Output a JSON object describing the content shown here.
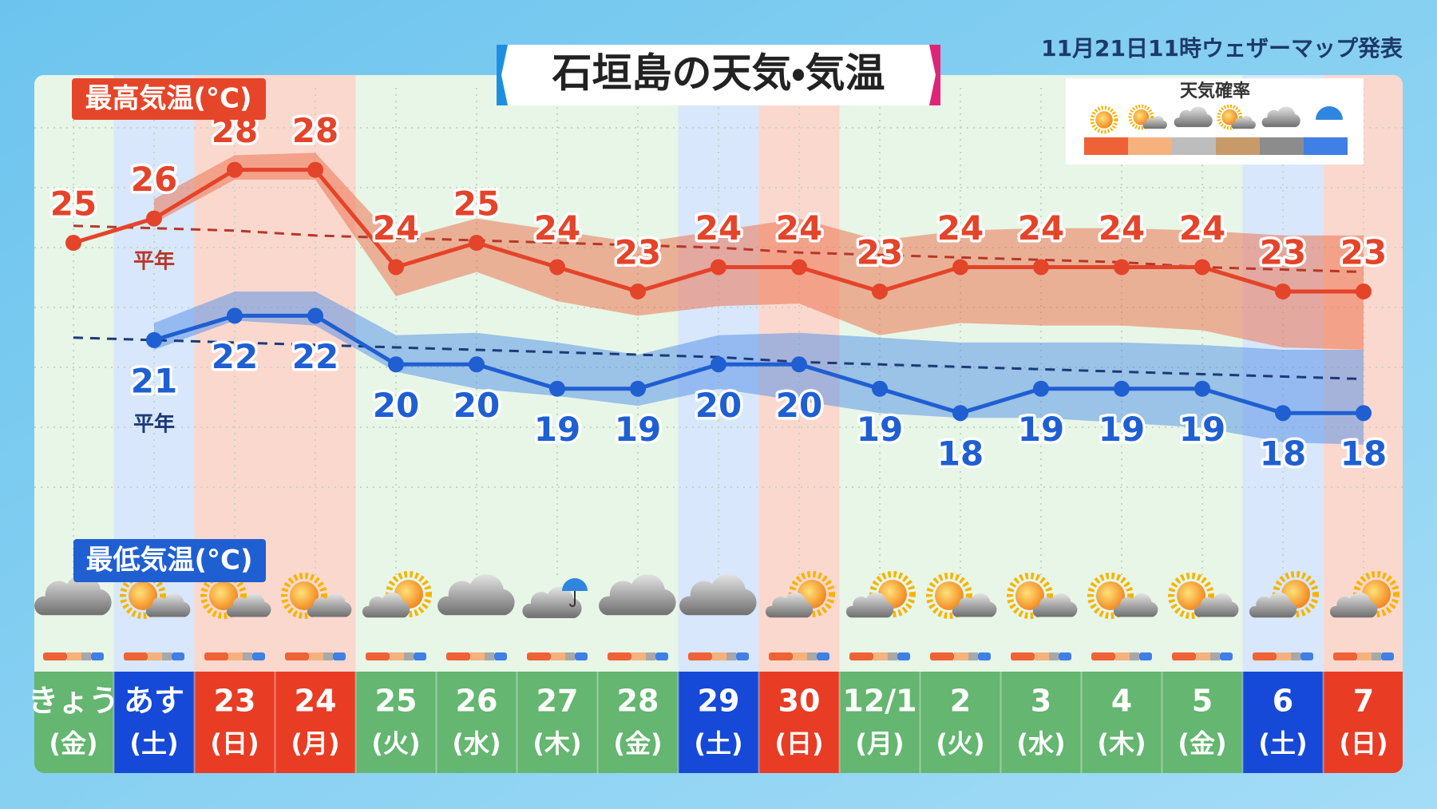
{
  "header": {
    "title": "石垣島の天気・気温",
    "issued": "11月21日11時ウェザーマップ発表"
  },
  "legend": {
    "title": "天気確率"
  },
  "chart_data": {
    "type": "line",
    "categories": [
      "きょう",
      "あす",
      "23",
      "24",
      "25",
      "26",
      "27",
      "28",
      "29",
      "30",
      "12/1",
      "2",
      "3",
      "4",
      "5",
      "6",
      "7"
    ],
    "weekdays": [
      "(金)",
      "(土)",
      "(日)",
      "(月)",
      "(火)",
      "(水)",
      "(木)",
      "(金)",
      "(土)",
      "(日)",
      "(月)",
      "(火)",
      "(水)",
      "(木)",
      "(金)",
      "(土)",
      "(日)"
    ],
    "ylim": [
      7.4,
      31.7
    ],
    "series": [
      {
        "name": "最高気温(°C)",
        "color": "#e4442a",
        "band_color": "#ee6a45",
        "values": [
          25,
          26,
          28,
          28,
          24,
          25,
          24,
          23,
          24,
          24,
          23,
          24,
          24,
          24,
          24,
          23,
          23
        ],
        "band_upper": [
          null,
          26.8,
          28.6,
          28.7,
          25.1,
          26.0,
          25.5,
          25.0,
          25.5,
          26.0,
          25.1,
          25.5,
          25.6,
          25.6,
          25.5,
          25.3,
          25.3
        ],
        "band_lower": [
          null,
          25.8,
          27.6,
          27.6,
          22.8,
          23.8,
          22.6,
          22.0,
          22.4,
          22.5,
          21.2,
          21.7,
          21.6,
          21.6,
          21.4,
          20.7,
          20.6
        ],
        "normal": [
          25.7,
          25.6,
          25.5,
          25.3,
          25.2,
          25.1,
          25.0,
          24.9,
          24.8,
          24.6,
          24.5,
          24.4,
          24.3,
          24.2,
          24.0,
          23.9,
          23.8
        ],
        "normal_color": "#b5382a",
        "normal_label": "平年"
      },
      {
        "name": "最低気温(°C)",
        "color": "#1f5fd2",
        "band_color": "#4f8de8",
        "values": [
          null,
          21,
          22,
          22,
          20,
          20,
          19,
          19,
          20,
          20,
          19,
          18,
          19,
          19,
          19,
          18,
          18
        ],
        "band_upper": [
          null,
          21.7,
          23.0,
          23.0,
          21.2,
          21.3,
          20.9,
          20.4,
          21.2,
          21.3,
          21.1,
          20.9,
          20.9,
          20.9,
          20.8,
          20.6,
          20.6
        ],
        "band_lower": [
          null,
          20.6,
          21.8,
          21.6,
          19.7,
          19.0,
          18.7,
          18.3,
          19.0,
          18.5,
          18.0,
          17.8,
          17.8,
          17.6,
          17.4,
          16.8,
          16.7
        ],
        "normal": [
          21.1,
          21.0,
          20.9,
          20.8,
          20.7,
          20.6,
          20.5,
          20.4,
          20.3,
          20.1,
          20.0,
          19.9,
          19.8,
          19.7,
          19.6,
          19.5,
          19.4
        ],
        "normal_color": "#1d3a78",
        "normal_label": "平年"
      }
    ]
  }
}
